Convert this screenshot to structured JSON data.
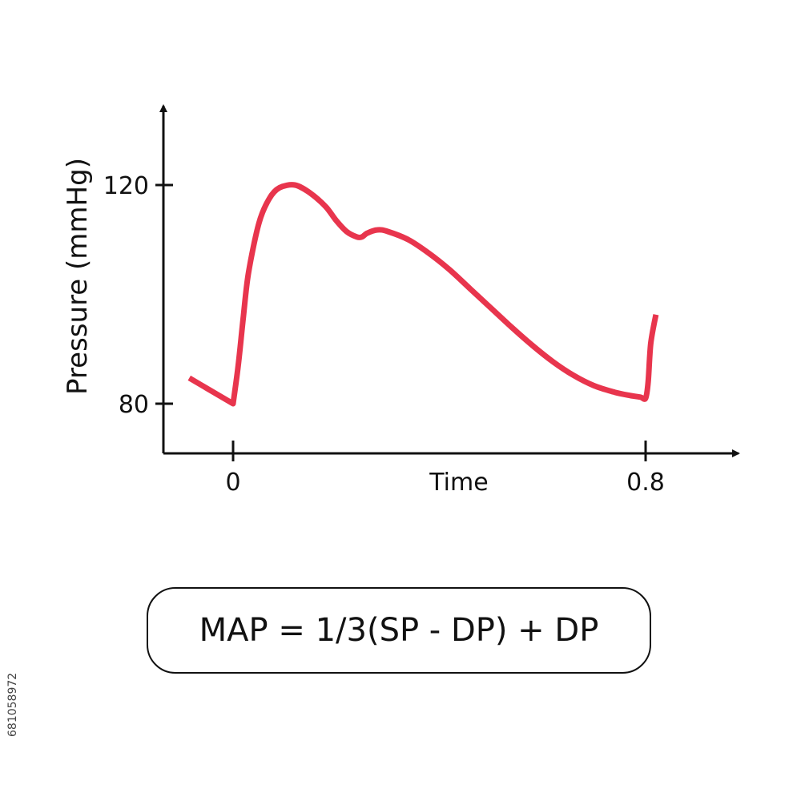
{
  "chart_data": {
    "type": "line",
    "xlabel": "Time",
    "ylabel": "Pressure (mmHg)",
    "x_ticks": [
      "0",
      "0.8"
    ],
    "y_ticks": [
      "80",
      "120"
    ],
    "xlim": [
      -0.12,
      0.86
    ],
    "ylim": [
      70,
      130
    ],
    "grid": false,
    "series": [
      {
        "color": "#e8354d",
        "x": [
          -0.085,
          0.0,
          0.01,
          0.02,
          0.03,
          0.05,
          0.07,
          0.09,
          0.12,
          0.15,
          0.18,
          0.2,
          0.22,
          0.24,
          0.25,
          0.26,
          0.28,
          0.3,
          0.34,
          0.38,
          0.42,
          0.46,
          0.5,
          0.54,
          0.58,
          0.62,
          0.66,
          0.7,
          0.74,
          0.77,
          0.79,
          0.8,
          0.805,
          0.81,
          0.82
        ],
        "y": [
          84.7,
          80.0,
          87.0,
          96.0,
          104.0,
          113.0,
          117.5,
          119.5,
          120.0,
          118.5,
          116.0,
          113.5,
          111.5,
          110.5,
          110.5,
          111.2,
          111.8,
          111.5,
          110.0,
          107.5,
          104.5,
          101.0,
          97.5,
          94.0,
          90.7,
          87.7,
          85.2,
          83.3,
          82.1,
          81.5,
          81.2,
          81.0,
          84.0,
          91.0,
          96.3
        ]
      }
    ]
  },
  "formula": "MAP = 1/3(SP - DP) + DP",
  "stock_id": "681058972"
}
